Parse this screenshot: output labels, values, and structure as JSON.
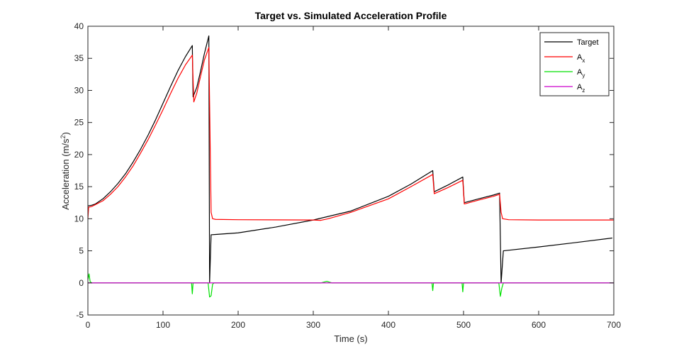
{
  "chart_data": {
    "type": "line",
    "title": "Target vs. Simulated Acceleration Profile",
    "xlabel": "Time (s)",
    "ylabel": {
      "main": "Acceleration (m/s",
      "sup": "2",
      "tail": ")"
    },
    "xlim": [
      0,
      700
    ],
    "ylim": [
      -5,
      40
    ],
    "xticks": [
      "0",
      "100",
      "200",
      "300",
      "400",
      "500",
      "600",
      "700"
    ],
    "yticks": [
      "-5",
      "0",
      "5",
      "10",
      "15",
      "20",
      "25",
      "30",
      "35",
      "40"
    ],
    "grid": false,
    "legend_position": "top-right",
    "series": [
      {
        "name": "Target",
        "legend_main": "Target",
        "legend_sub": "",
        "color": "#000000",
        "points": [
          [
            0,
            12
          ],
          [
            5,
            12.1
          ],
          [
            10,
            12.3
          ],
          [
            20,
            13.1
          ],
          [
            30,
            14.2
          ],
          [
            40,
            15.5
          ],
          [
            50,
            17
          ],
          [
            60,
            18.8
          ],
          [
            70,
            20.8
          ],
          [
            80,
            23
          ],
          [
            90,
            25.4
          ],
          [
            100,
            28
          ],
          [
            110,
            30.6
          ],
          [
            120,
            33.1
          ],
          [
            130,
            35.3
          ],
          [
            139,
            37
          ],
          [
            140,
            29
          ],
          [
            145,
            30.5
          ],
          [
            150,
            33
          ],
          [
            155,
            35.7
          ],
          [
            161,
            38.5
          ],
          [
            162,
            0
          ],
          [
            164,
            7.5
          ],
          [
            170,
            7.55
          ],
          [
            200,
            7.8
          ],
          [
            250,
            8.7
          ],
          [
            300,
            9.8
          ],
          [
            350,
            11.2
          ],
          [
            400,
            13.5
          ],
          [
            430,
            15.4
          ],
          [
            459,
            17.5
          ],
          [
            461,
            14.2
          ],
          [
            480,
            15.3
          ],
          [
            499,
            16.5
          ],
          [
            501,
            12.5
          ],
          [
            520,
            13.1
          ],
          [
            540,
            13.7
          ],
          [
            548,
            14
          ],
          [
            550,
            0
          ],
          [
            553,
            5
          ],
          [
            600,
            5.6
          ],
          [
            650,
            6.3
          ],
          [
            698,
            7
          ]
        ]
      },
      {
        "name": "A_x",
        "legend_main": "A",
        "legend_sub": "x",
        "color": "#ff0000",
        "points": [
          [
            0,
            10
          ],
          [
            1,
            11.8
          ],
          [
            5,
            11.9
          ],
          [
            10,
            12.2
          ],
          [
            20,
            12.8
          ],
          [
            30,
            13.8
          ],
          [
            40,
            15
          ],
          [
            50,
            16.5
          ],
          [
            60,
            18.2
          ],
          [
            70,
            20.2
          ],
          [
            80,
            22.3
          ],
          [
            90,
            24.6
          ],
          [
            100,
            27
          ],
          [
            110,
            29.5
          ],
          [
            120,
            31.9
          ],
          [
            130,
            34
          ],
          [
            139,
            35.5
          ],
          [
            141,
            28.2
          ],
          [
            145,
            29.6
          ],
          [
            150,
            32.2
          ],
          [
            155,
            34.7
          ],
          [
            161,
            36.7
          ],
          [
            164,
            11
          ],
          [
            166,
            10
          ],
          [
            170,
            9.9
          ],
          [
            200,
            9.85
          ],
          [
            300,
            9.8
          ],
          [
            310,
            9.75
          ],
          [
            320,
            10
          ],
          [
            350,
            11
          ],
          [
            400,
            13.1
          ],
          [
            430,
            15
          ],
          [
            459,
            16.9
          ],
          [
            461,
            13.9
          ],
          [
            480,
            14.9
          ],
          [
            499,
            16
          ],
          [
            501,
            12.3
          ],
          [
            520,
            12.9
          ],
          [
            540,
            13.5
          ],
          [
            548,
            13.8
          ],
          [
            550,
            11
          ],
          [
            552,
            10
          ],
          [
            560,
            9.85
          ],
          [
            600,
            9.8
          ],
          [
            650,
            9.8
          ],
          [
            700,
            9.8
          ]
        ]
      },
      {
        "name": "A_y",
        "legend_main": "A",
        "legend_sub": "y",
        "color": "#00e000",
        "points": [
          [
            0,
            0.5
          ],
          [
            1.5,
            1.4
          ],
          [
            3,
            0.2
          ],
          [
            5,
            0
          ],
          [
            138,
            0
          ],
          [
            139,
            -1.7
          ],
          [
            140,
            0
          ],
          [
            160,
            0
          ],
          [
            162,
            -2.2
          ],
          [
            164,
            -2
          ],
          [
            166,
            -0.2
          ],
          [
            168,
            0
          ],
          [
            310,
            0
          ],
          [
            318,
            0.25
          ],
          [
            325,
            0
          ],
          [
            458,
            0
          ],
          [
            459,
            -1.2
          ],
          [
            460,
            0
          ],
          [
            498,
            0
          ],
          [
            499,
            -1.4
          ],
          [
            500,
            0
          ],
          [
            547,
            0
          ],
          [
            549,
            -2.1
          ],
          [
            551,
            -0.8
          ],
          [
            553,
            0
          ],
          [
            700,
            0
          ]
        ]
      },
      {
        "name": "A_z",
        "legend_main": "A",
        "legend_sub": "z",
        "color": "#cc00cc",
        "points": [
          [
            0,
            0
          ],
          [
            700,
            0
          ]
        ]
      }
    ]
  }
}
